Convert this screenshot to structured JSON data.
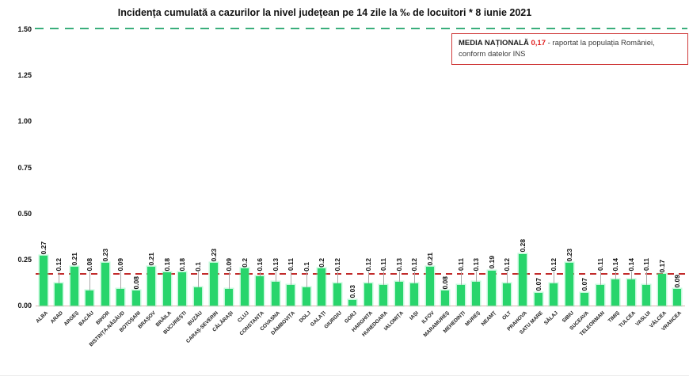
{
  "title": "Incidența cumulată a cazurilor la nivel județean pe 14 zile la ‰ de locuitori *  8 iunie 2021",
  "legend_box": {
    "label": "MEDIA NAȚIONALĂ",
    "value": "0,17",
    "suffix": "- raportat la populația României,",
    "line2": "conform datelor INS"
  },
  "colors": {
    "bar_green": "#28d56c",
    "average_line_red": "#c22b2b",
    "top_reference_green": "#3aae7c",
    "legend_border_red": "#cf3a3a"
  },
  "chart_data": {
    "type": "bar",
    "title": "Incidența cumulată a cazurilor la nivel județean pe 14 zile la ‰ de locuitori * 8 iunie 2021",
    "xlabel": "",
    "ylabel": "",
    "ylim": [
      0,
      1.5
    ],
    "yticks": [
      "1.50",
      "1.25",
      "1.00",
      "0.75",
      "0.50",
      "0.25",
      "0.00"
    ],
    "grid": false,
    "legend_position": "top-right",
    "national_average": 0.17,
    "reference_lines": [
      {
        "value": 1.5,
        "style": "dashed",
        "color": "#3aae7c"
      },
      {
        "value": 0.17,
        "style": "dashed",
        "color": "#c22b2b",
        "meaning": "media națională"
      }
    ],
    "categories": [
      "ALBA",
      "ARAD",
      "ARGEȘ",
      "BACĂU",
      "BIHOR",
      "BISTRIȚA-NĂSĂUD",
      "BOTOȘANI",
      "BRAȘOV",
      "BRĂILA",
      "BUCUREȘTI",
      "BUZĂU",
      "CARAȘ-SEVERIN",
      "CĂLĂRAȘI",
      "CLUJ",
      "CONSTANȚA",
      "COVASNA",
      "DÂMBOVIȚA",
      "DOLJ",
      "GALAȚI",
      "GIURGIU",
      "GORJ",
      "HARGHITA",
      "HUNEDOARA",
      "IALOMIȚA",
      "IAȘI",
      "ILFOV",
      "MARAMUREȘ",
      "MEHEDINȚI",
      "MUREȘ",
      "NEAMȚ",
      "OLT",
      "PRAHOVA",
      "SATU MARE",
      "SĂLAJ",
      "SIBIU",
      "SUCEAVA",
      "TELEORMAN",
      "TIMIȘ",
      "TULCEA",
      "VASLUI",
      "VÂLCEA",
      "VRANCEA"
    ],
    "values": [
      0.27,
      0.12,
      0.21,
      0.08,
      0.23,
      0.09,
      0.08,
      0.21,
      0.18,
      0.18,
      0.1,
      0.23,
      0.09,
      0.2,
      0.16,
      0.13,
      0.11,
      0.1,
      0.2,
      0.12,
      0.03,
      0.12,
      0.11,
      0.13,
      0.12,
      0.21,
      0.08,
      0.11,
      0.13,
      0.19,
      0.12,
      0.28,
      0.07,
      0.12,
      0.23,
      0.07,
      0.11,
      0.14,
      0.14,
      0.11,
      0.17,
      0.09
    ],
    "value_labels": [
      "0.27",
      "0.12",
      "0.21",
      "0.08",
      "0.23",
      "0.09",
      "0.08",
      "0.21",
      "0.18",
      "0.18",
      "0.1",
      "0.23",
      "0.09",
      "0.2",
      "0.16",
      "0.13",
      "0.11",
      "0.1",
      "0.2",
      "0.12",
      "0.03",
      "0.12",
      "0.11",
      "0.13",
      "0.12",
      "0.21",
      "0.08",
      "0.11",
      "0.13",
      "0.19",
      "0.12",
      "0.28",
      "0.07",
      "0.12",
      "0.23",
      "0.07",
      "0.11",
      "0.14",
      "0.14",
      "0.11",
      "0.17",
      "0.09"
    ],
    "label_raised": [
      false,
      true,
      false,
      true,
      false,
      true,
      false,
      false,
      false,
      false,
      true,
      false,
      true,
      false,
      true,
      true,
      true,
      true,
      false,
      true,
      false,
      true,
      true,
      true,
      true,
      false,
      false,
      true,
      true,
      false,
      true,
      false,
      false,
      true,
      false,
      false,
      true,
      true,
      true,
      true,
      false,
      false
    ]
  }
}
